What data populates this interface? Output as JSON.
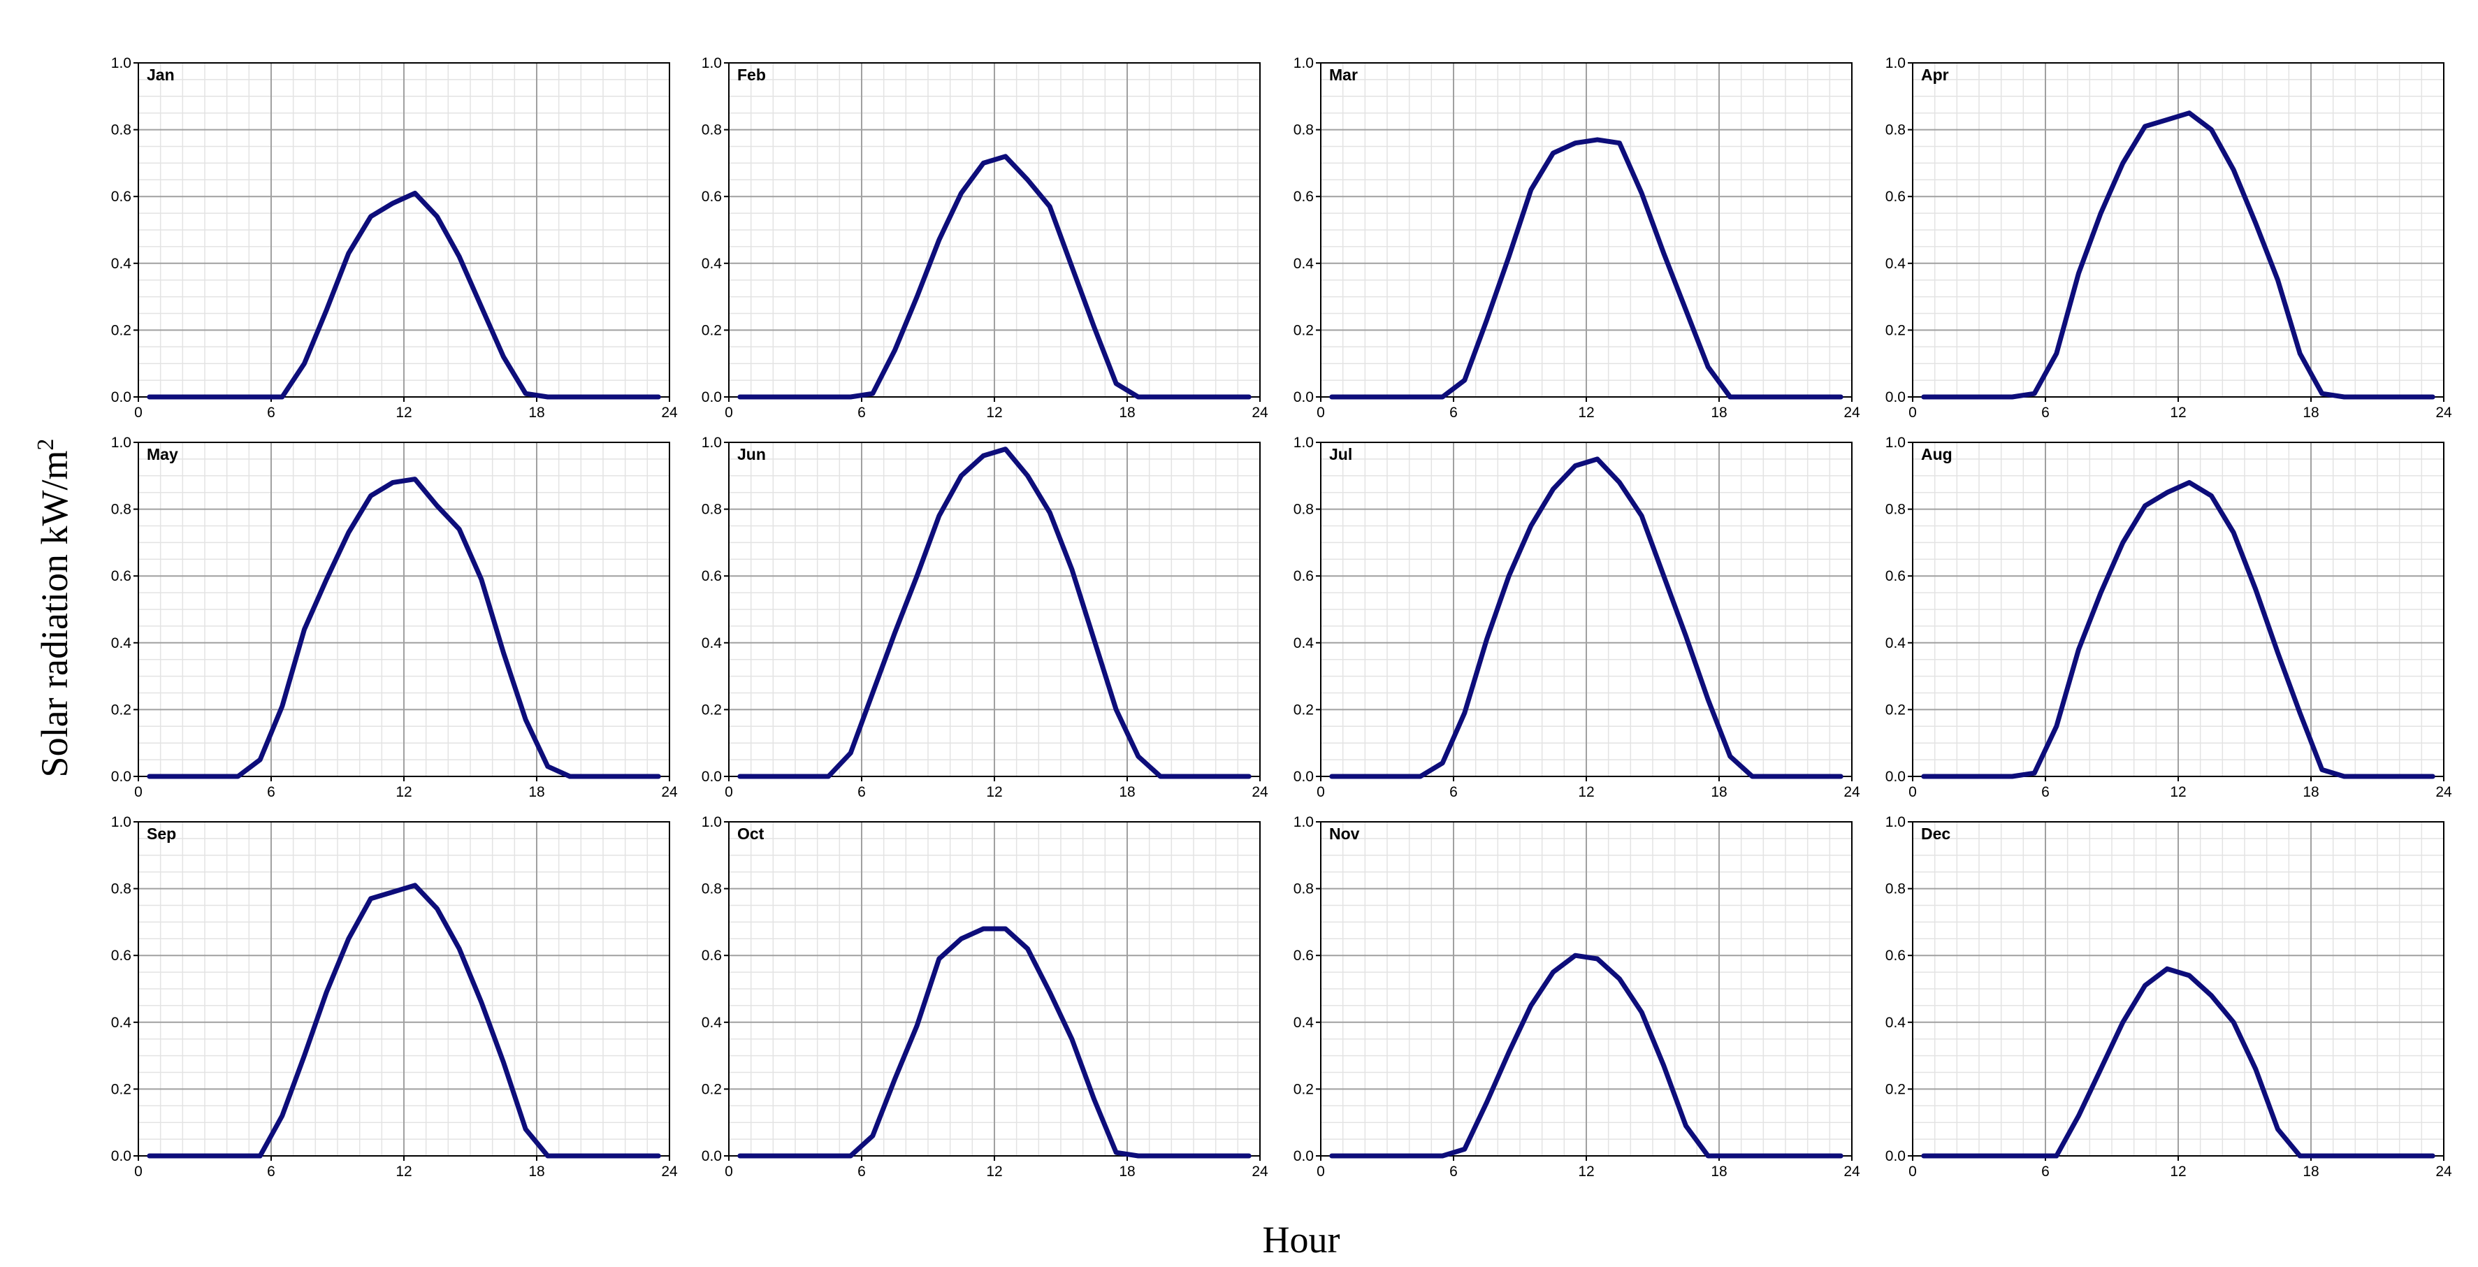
{
  "chart_data": {
    "type": "line",
    "layout": "small-multiples-3x4",
    "xlabel": "Hour",
    "ylabel": "Solar radiation kW/m",
    "ylabel_superscript": "2",
    "xlim": [
      0,
      24
    ],
    "ylim": [
      0,
      1.0
    ],
    "xticks": [
      0,
      6,
      12,
      18,
      24
    ],
    "yticks": [
      0.0,
      0.2,
      0.4,
      0.6,
      0.8,
      1.0
    ],
    "xtick_labels": [
      "0",
      "6",
      "12",
      "18",
      "24"
    ],
    "ytick_labels": [
      "0.0",
      "0.2",
      "0.4",
      "0.6",
      "0.8",
      "1.0"
    ],
    "grid": true,
    "line_color": "#0d0d7a",
    "panels": [
      {
        "name": "Jan",
        "x": [
          0.5,
          1.5,
          2.5,
          3.5,
          4.5,
          5.5,
          6.5,
          7.5,
          8.5,
          9.5,
          10.5,
          11.5,
          12.5,
          13.5,
          14.5,
          15.5,
          16.5,
          17.5,
          18.5,
          19.5,
          20.5,
          21.5,
          22.5,
          23.5
        ],
        "y": [
          0,
          0,
          0,
          0,
          0,
          0,
          0,
          0.1,
          0.26,
          0.43,
          0.54,
          0.58,
          0.61,
          0.54,
          0.42,
          0.27,
          0.12,
          0.01,
          0,
          0,
          0,
          0,
          0,
          0
        ]
      },
      {
        "name": "Feb",
        "x": [
          0.5,
          1.5,
          2.5,
          3.5,
          4.5,
          5.5,
          6.5,
          7.5,
          8.5,
          9.5,
          10.5,
          11.5,
          12.5,
          13.5,
          14.5,
          15.5,
          16.5,
          17.5,
          18.5,
          19.5,
          20.5,
          21.5,
          22.5,
          23.5
        ],
        "y": [
          0,
          0,
          0,
          0,
          0,
          0,
          0.01,
          0.14,
          0.3,
          0.47,
          0.61,
          0.7,
          0.72,
          0.65,
          0.57,
          0.39,
          0.21,
          0.04,
          0,
          0,
          0,
          0,
          0,
          0
        ]
      },
      {
        "name": "Mar",
        "x": [
          0.5,
          1.5,
          2.5,
          3.5,
          4.5,
          5.5,
          6.5,
          7.5,
          8.5,
          9.5,
          10.5,
          11.5,
          12.5,
          13.5,
          14.5,
          15.5,
          16.5,
          17.5,
          18.5,
          19.5,
          20.5,
          21.5,
          22.5,
          23.5
        ],
        "y": [
          0,
          0,
          0,
          0,
          0,
          0,
          0.05,
          0.23,
          0.42,
          0.62,
          0.73,
          0.76,
          0.77,
          0.76,
          0.61,
          0.43,
          0.26,
          0.09,
          0,
          0,
          0,
          0,
          0,
          0
        ]
      },
      {
        "name": "Apr",
        "x": [
          0.5,
          1.5,
          2.5,
          3.5,
          4.5,
          5.5,
          6.5,
          7.5,
          8.5,
          9.5,
          10.5,
          11.5,
          12.5,
          13.5,
          14.5,
          15.5,
          16.5,
          17.5,
          18.5,
          19.5,
          20.5,
          21.5,
          22.5,
          23.5
        ],
        "y": [
          0,
          0,
          0,
          0,
          0,
          0.01,
          0.13,
          0.37,
          0.55,
          0.7,
          0.81,
          0.83,
          0.85,
          0.8,
          0.68,
          0.52,
          0.35,
          0.13,
          0.01,
          0,
          0,
          0,
          0,
          0
        ]
      },
      {
        "name": "May",
        "x": [
          0.5,
          1.5,
          2.5,
          3.5,
          4.5,
          5.5,
          6.5,
          7.5,
          8.5,
          9.5,
          10.5,
          11.5,
          12.5,
          13.5,
          14.5,
          15.5,
          16.5,
          17.5,
          18.5,
          19.5,
          20.5,
          21.5,
          22.5,
          23.5
        ],
        "y": [
          0,
          0,
          0,
          0,
          0,
          0.05,
          0.21,
          0.44,
          0.59,
          0.73,
          0.84,
          0.88,
          0.89,
          0.81,
          0.74,
          0.59,
          0.37,
          0.17,
          0.03,
          0,
          0,
          0,
          0,
          0
        ]
      },
      {
        "name": "Jun",
        "x": [
          0.5,
          1.5,
          2.5,
          3.5,
          4.5,
          5.5,
          6.5,
          7.5,
          8.5,
          9.5,
          10.5,
          11.5,
          12.5,
          13.5,
          14.5,
          15.5,
          16.5,
          17.5,
          18.5,
          19.5,
          20.5,
          21.5,
          22.5,
          23.5
        ],
        "y": [
          0,
          0,
          0,
          0,
          0,
          0.07,
          0.25,
          0.43,
          0.6,
          0.78,
          0.9,
          0.96,
          0.98,
          0.9,
          0.79,
          0.62,
          0.41,
          0.2,
          0.06,
          0,
          0,
          0,
          0,
          0
        ]
      },
      {
        "name": "Jul",
        "x": [
          0.5,
          1.5,
          2.5,
          3.5,
          4.5,
          5.5,
          6.5,
          7.5,
          8.5,
          9.5,
          10.5,
          11.5,
          12.5,
          13.5,
          14.5,
          15.5,
          16.5,
          17.5,
          18.5,
          19.5,
          20.5,
          21.5,
          22.5,
          23.5
        ],
        "y": [
          0,
          0,
          0,
          0,
          0,
          0.04,
          0.19,
          0.41,
          0.6,
          0.75,
          0.86,
          0.93,
          0.95,
          0.88,
          0.78,
          0.6,
          0.42,
          0.23,
          0.06,
          0,
          0,
          0,
          0,
          0
        ]
      },
      {
        "name": "Aug",
        "x": [
          0.5,
          1.5,
          2.5,
          3.5,
          4.5,
          5.5,
          6.5,
          7.5,
          8.5,
          9.5,
          10.5,
          11.5,
          12.5,
          13.5,
          14.5,
          15.5,
          16.5,
          17.5,
          18.5,
          19.5,
          20.5,
          21.5,
          22.5,
          23.5
        ],
        "y": [
          0,
          0,
          0,
          0,
          0,
          0.01,
          0.15,
          0.38,
          0.55,
          0.7,
          0.81,
          0.85,
          0.88,
          0.84,
          0.73,
          0.56,
          0.37,
          0.19,
          0.02,
          0,
          0,
          0,
          0,
          0
        ]
      },
      {
        "name": "Sep",
        "x": [
          0.5,
          1.5,
          2.5,
          3.5,
          4.5,
          5.5,
          6.5,
          7.5,
          8.5,
          9.5,
          10.5,
          11.5,
          12.5,
          13.5,
          14.5,
          15.5,
          16.5,
          17.5,
          18.5,
          19.5,
          20.5,
          21.5,
          22.5,
          23.5
        ],
        "y": [
          0,
          0,
          0,
          0,
          0,
          0,
          0.12,
          0.3,
          0.49,
          0.65,
          0.77,
          0.79,
          0.81,
          0.74,
          0.62,
          0.46,
          0.28,
          0.08,
          0,
          0,
          0,
          0,
          0,
          0
        ]
      },
      {
        "name": "Oct",
        "x": [
          0.5,
          1.5,
          2.5,
          3.5,
          4.5,
          5.5,
          6.5,
          7.5,
          8.5,
          9.5,
          10.5,
          11.5,
          12.5,
          13.5,
          14.5,
          15.5,
          16.5,
          17.5,
          18.5,
          19.5,
          20.5,
          21.5,
          22.5,
          23.5
        ],
        "y": [
          0,
          0,
          0,
          0,
          0,
          0,
          0.06,
          0.23,
          0.39,
          0.59,
          0.65,
          0.68,
          0.68,
          0.62,
          0.49,
          0.35,
          0.17,
          0.01,
          0,
          0,
          0,
          0,
          0,
          0
        ]
      },
      {
        "name": "Nov",
        "x": [
          0.5,
          1.5,
          2.5,
          3.5,
          4.5,
          5.5,
          6.5,
          7.5,
          8.5,
          9.5,
          10.5,
          11.5,
          12.5,
          13.5,
          14.5,
          15.5,
          16.5,
          17.5,
          18.5,
          19.5,
          20.5,
          21.5,
          22.5,
          23.5
        ],
        "y": [
          0,
          0,
          0,
          0,
          0,
          0,
          0.02,
          0.16,
          0.31,
          0.45,
          0.55,
          0.6,
          0.59,
          0.53,
          0.43,
          0.27,
          0.09,
          0,
          0,
          0,
          0,
          0,
          0,
          0
        ]
      },
      {
        "name": "Dec",
        "x": [
          0.5,
          1.5,
          2.5,
          3.5,
          4.5,
          5.5,
          6.5,
          7.5,
          8.5,
          9.5,
          10.5,
          11.5,
          12.5,
          13.5,
          14.5,
          15.5,
          16.5,
          17.5,
          18.5,
          19.5,
          20.5,
          21.5,
          22.5,
          23.5
        ],
        "y": [
          0,
          0,
          0,
          0,
          0,
          0,
          0,
          0.12,
          0.26,
          0.4,
          0.51,
          0.56,
          0.54,
          0.48,
          0.4,
          0.26,
          0.08,
          0,
          0,
          0,
          0,
          0,
          0,
          0
        ]
      }
    ]
  }
}
